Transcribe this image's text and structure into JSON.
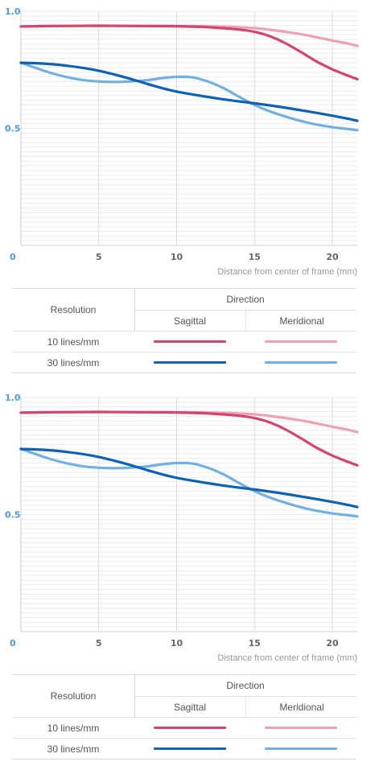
{
  "colors": {
    "sagittal_10": "#d5456b",
    "meridional_10": "#eda2b4",
    "sagittal_30": "#0e62b4",
    "meridional_30": "#71b0e0",
    "axis_blue": "#4a9fd9",
    "grid": "#ebebeb"
  },
  "chart_data": [
    {
      "type": "line",
      "y_ticks": [
        "1.0",
        "0.5",
        "0"
      ],
      "x_ticks": [
        "5",
        "10",
        "15",
        "20"
      ],
      "xlabel": "Distance from center of frame (mm)",
      "xlim": [
        0,
        21.6
      ],
      "ylim": [
        0,
        1.0
      ],
      "grid": true,
      "series": [
        {
          "name": "10 lines/mm Sagittal",
          "key": "sagittal_10",
          "x": [
            0,
            2,
            4,
            6,
            8,
            10,
            12,
            14,
            15,
            16,
            17,
            18,
            19,
            20,
            21,
            21.6
          ],
          "y": [
            0.935,
            0.937,
            0.938,
            0.938,
            0.937,
            0.936,
            0.932,
            0.922,
            0.912,
            0.893,
            0.863,
            0.825,
            0.785,
            0.752,
            0.725,
            0.71
          ]
        },
        {
          "name": "10 lines/mm Meridional",
          "key": "meridional_10",
          "x": [
            0,
            2,
            4,
            6,
            8,
            10,
            12,
            14,
            15,
            16,
            17,
            18,
            19,
            20,
            21,
            21.6
          ],
          "y": [
            0.935,
            0.937,
            0.938,
            0.938,
            0.937,
            0.937,
            0.936,
            0.932,
            0.928,
            0.921,
            0.912,
            0.902,
            0.889,
            0.875,
            0.862,
            0.852
          ]
        },
        {
          "name": "30 lines/mm Sagittal",
          "key": "sagittal_30",
          "x": [
            0,
            1,
            2,
            3,
            4,
            5,
            6,
            7,
            8,
            9,
            10,
            11,
            12,
            13,
            14,
            15,
            16,
            17,
            18,
            19,
            20,
            21,
            21.6
          ],
          "y": [
            0.78,
            0.778,
            0.774,
            0.767,
            0.758,
            0.746,
            0.73,
            0.712,
            0.692,
            0.673,
            0.657,
            0.645,
            0.634,
            0.624,
            0.615,
            0.607,
            0.598,
            0.588,
            0.577,
            0.566,
            0.554,
            0.541,
            0.532
          ]
        },
        {
          "name": "30 lines/mm Meridional",
          "key": "meridional_30",
          "x": [
            0,
            1,
            2,
            3,
            4,
            5,
            6,
            7,
            8,
            9,
            10,
            11,
            12,
            13,
            14,
            15,
            16,
            17,
            18,
            19,
            20,
            21,
            21.6
          ],
          "y": [
            0.78,
            0.757,
            0.735,
            0.718,
            0.706,
            0.7,
            0.698,
            0.7,
            0.705,
            0.714,
            0.72,
            0.718,
            0.7,
            0.672,
            0.635,
            0.6,
            0.572,
            0.55,
            0.531,
            0.516,
            0.505,
            0.497,
            0.492
          ]
        }
      ]
    },
    {
      "type": "line",
      "y_ticks": [
        "1.0",
        "0.5",
        "0"
      ],
      "x_ticks": [
        "5",
        "10",
        "15",
        "20"
      ],
      "xlabel": "Distance from center of frame (mm)",
      "xlim": [
        0,
        21.6
      ],
      "ylim": [
        0,
        1.0
      ],
      "grid": true,
      "series": [
        {
          "name": "10 lines/mm Sagittal",
          "key": "sagittal_10",
          "x": [
            0,
            2,
            4,
            6,
            8,
            10,
            12,
            14,
            15,
            16,
            17,
            18,
            19,
            20,
            21,
            21.6
          ],
          "y": [
            0.935,
            0.937,
            0.938,
            0.938,
            0.937,
            0.936,
            0.932,
            0.922,
            0.912,
            0.893,
            0.863,
            0.825,
            0.785,
            0.752,
            0.725,
            0.71
          ]
        },
        {
          "name": "10 lines/mm Meridional",
          "key": "meridional_10",
          "x": [
            0,
            2,
            4,
            6,
            8,
            10,
            12,
            14,
            15,
            16,
            17,
            18,
            19,
            20,
            21,
            21.6
          ],
          "y": [
            0.935,
            0.937,
            0.938,
            0.938,
            0.937,
            0.937,
            0.936,
            0.932,
            0.928,
            0.921,
            0.912,
            0.902,
            0.889,
            0.875,
            0.862,
            0.852
          ]
        },
        {
          "name": "30 lines/mm Sagittal",
          "key": "sagittal_30",
          "x": [
            0,
            1,
            2,
            3,
            4,
            5,
            6,
            7,
            8,
            9,
            10,
            11,
            12,
            13,
            14,
            15,
            16,
            17,
            18,
            19,
            20,
            21,
            21.6
          ],
          "y": [
            0.78,
            0.778,
            0.774,
            0.767,
            0.758,
            0.746,
            0.73,
            0.712,
            0.692,
            0.673,
            0.657,
            0.645,
            0.634,
            0.624,
            0.615,
            0.607,
            0.598,
            0.588,
            0.577,
            0.566,
            0.554,
            0.541,
            0.532
          ]
        },
        {
          "name": "30 lines/mm Meridional",
          "key": "meridional_30",
          "x": [
            0,
            1,
            2,
            3,
            4,
            5,
            6,
            7,
            8,
            9,
            10,
            11,
            12,
            13,
            14,
            15,
            16,
            17,
            18,
            19,
            20,
            21,
            21.6
          ],
          "y": [
            0.78,
            0.757,
            0.735,
            0.718,
            0.706,
            0.7,
            0.698,
            0.7,
            0.705,
            0.714,
            0.72,
            0.718,
            0.7,
            0.672,
            0.635,
            0.6,
            0.572,
            0.55,
            0.531,
            0.516,
            0.505,
            0.497,
            0.492
          ]
        }
      ]
    }
  ],
  "legend": {
    "resolution_header": "Resolution",
    "direction_header": "Direction",
    "sagittal_label": "Sagittal",
    "meridional_label": "Meridional",
    "rows": [
      {
        "label": "10 lines/mm",
        "sagittal_key": "sagittal_10",
        "meridional_key": "meridional_10"
      },
      {
        "label": "30 lines/mm",
        "sagittal_key": "sagittal_30",
        "meridional_key": "meridional_30"
      }
    ]
  }
}
